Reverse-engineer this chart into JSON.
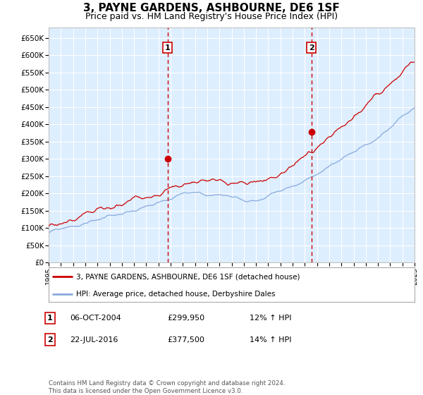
{
  "title": "3, PAYNE GARDENS, ASHBOURNE, DE6 1SF",
  "subtitle": "Price paid vs. HM Land Registry's House Price Index (HPI)",
  "title_fontsize": 11,
  "subtitle_fontsize": 9,
  "background_color": "#ffffff",
  "plot_bg_color": "#ddeeff",
  "grid_color": "#ffffff",
  "ylabel_values": [
    0,
    50000,
    100000,
    150000,
    200000,
    250000,
    300000,
    350000,
    400000,
    450000,
    500000,
    550000,
    600000,
    650000
  ],
  "ylim": [
    0,
    680000
  ],
  "x_start_year": 1995,
  "x_end_year": 2025,
  "sale1_year": 2004.75,
  "sale1_price": 299950,
  "sale2_year": 2016.55,
  "sale2_price": 377500,
  "red_line_color": "#cc0000",
  "blue_line_color": "#88aadd",
  "vline_color": "#cc0000",
  "marker_color": "#cc0000",
  "legend_label_red": "3, PAYNE GARDENS, ASHBOURNE, DE6 1SF (detached house)",
  "legend_label_blue": "HPI: Average price, detached house, Derbyshire Dales",
  "note1_num": "1",
  "note1_date": "06-OCT-2004",
  "note1_price": "£299,950",
  "note1_hpi": "12% ↑ HPI",
  "note2_num": "2",
  "note2_date": "22-JUL-2016",
  "note2_price": "£377,500",
  "note2_hpi": "14% ↑ HPI",
  "footer": "Contains HM Land Registry data © Crown copyright and database right 2024.\nThis data is licensed under the Open Government Licence v3.0."
}
